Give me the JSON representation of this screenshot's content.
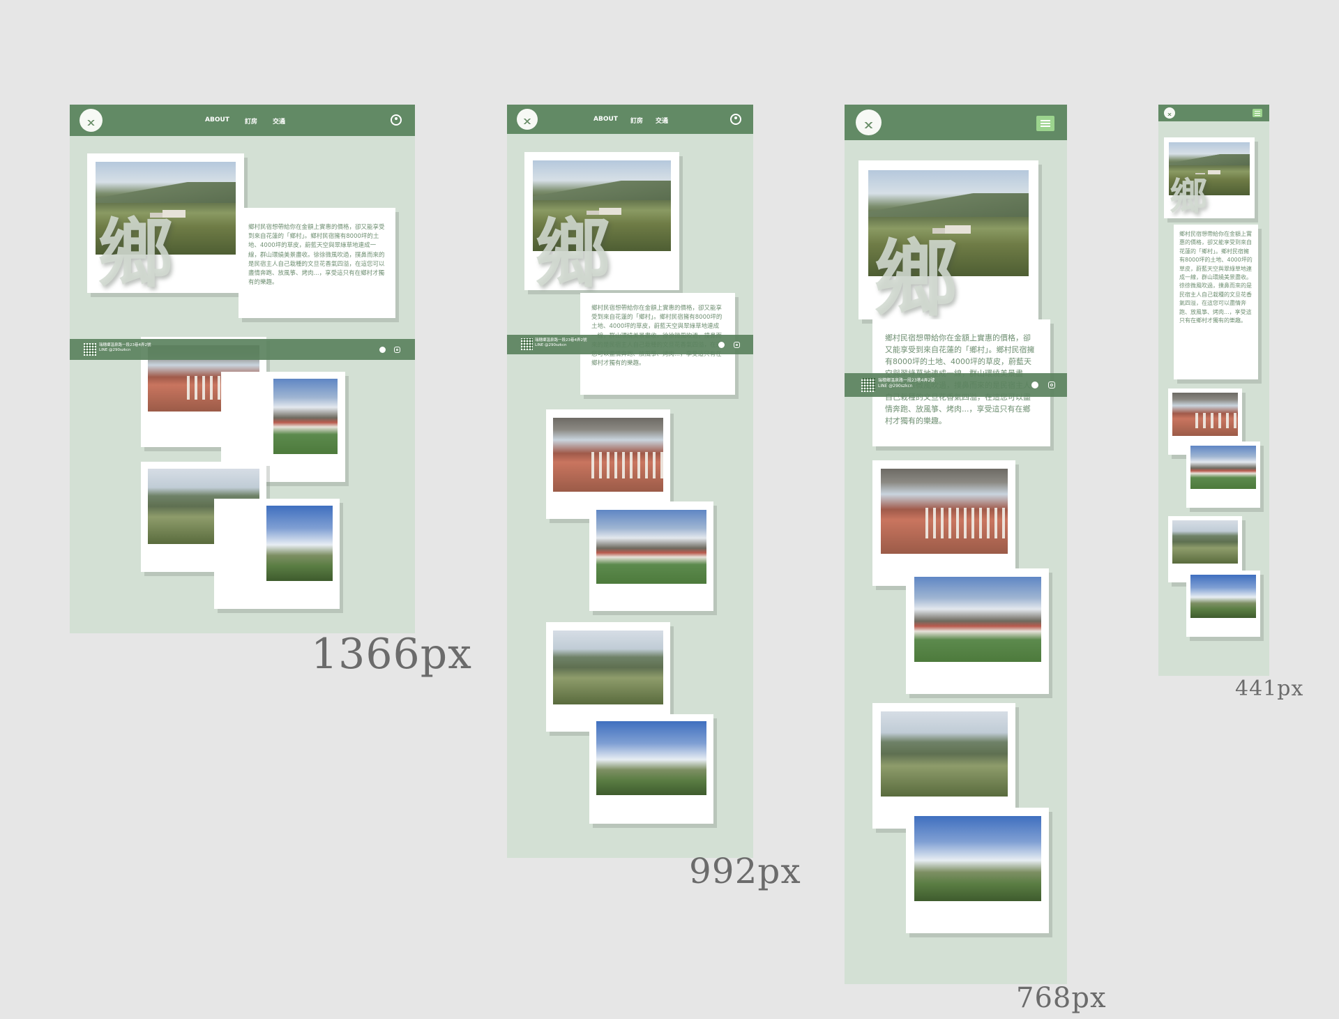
{
  "brand": {
    "logo_icon": "mountain-logo-icon"
  },
  "nav": {
    "about": "ABOUT",
    "booking": "訂房",
    "transport": "交通",
    "account_icon": "user-circle-icon",
    "menu_icon": "hamburger-icon"
  },
  "hero": {
    "kanji": "鄉",
    "text": "鄉村民宿想帶給你在金額上實惠的價格，卻又能享受到來自花蓮的「鄉村」。鄉村民宿擁有8000坪的土地、4000坪的草皮，蔚藍天空與翠綠草地連成一線，群山環繞美景盡收。徐徐微風吹過，撲鼻而來的是民宿主人自己栽種的文旦花香氣四溢，在這您可以盡情奔跑、放風箏、烤肉...，享受這只有在鄉村才獨有的樂趣。"
  },
  "footer": {
    "address": "瑞穗鄉溫泉路一段23巷4弄2號",
    "line": "LINE @290szkcn",
    "facebook_icon": "facebook-icon",
    "instagram_icon": "instagram-icon"
  },
  "breakpoints": {
    "w1366": "1366px",
    "w992": "992px",
    "w768": "768px",
    "w441": "441px"
  },
  "colors": {
    "nav_green": "#628a65",
    "page_bg": "#d3e0d4",
    "text_green": "#6f8f72",
    "canvas": "#e6e6e6"
  }
}
